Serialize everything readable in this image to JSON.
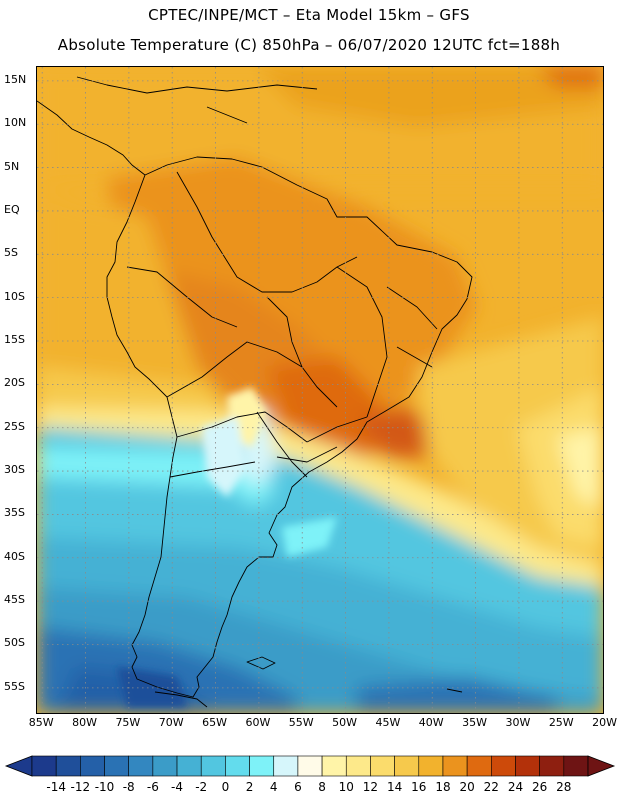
{
  "header": {
    "line1": "CPTEC/INPE/MCT –  Eta Model 15km – GFS",
    "line2": "Absolute Temperature (C) 850hPa – 06/07/2020 12UTC fct=188h"
  },
  "map": {
    "lat_labels": [
      "15N",
      "10N",
      "5N",
      "EQ",
      "5S",
      "10S",
      "15S",
      "20S",
      "25S",
      "30S",
      "35S",
      "40S",
      "45S",
      "50S",
      "55S"
    ],
    "lon_labels": [
      "85W",
      "80W",
      "75W",
      "70W",
      "65W",
      "60W",
      "55W",
      "50W",
      "45W",
      "40W",
      "35W",
      "30W",
      "25W",
      "20W"
    ],
    "lat_values": [
      15,
      10,
      5,
      0,
      -5,
      -10,
      -15,
      -20,
      -25,
      -30,
      -35,
      -40,
      -45,
      -50,
      -55
    ],
    "lon_values": [
      -85,
      -80,
      -75,
      -70,
      -65,
      -60,
      -55,
      -50,
      -45,
      -40,
      -35,
      -30,
      -25,
      -20
    ],
    "lon_range": [
      -85.6,
      -20.3
    ],
    "lat_range": [
      -57.9,
      16.6
    ],
    "gridlines": "dotted",
    "region": "South America"
  },
  "colorbar": {
    "labels": [
      "-14",
      "-12",
      "-10",
      "-8",
      "-6",
      "-4",
      "-2",
      "0",
      "2",
      "4",
      "6",
      "8",
      "10",
      "12",
      "14",
      "16",
      "18",
      "20",
      "22",
      "24",
      "26",
      "28"
    ],
    "colors": [
      "#1c3a8c",
      "#1f4f9a",
      "#2460a8",
      "#2a72b4",
      "#3387c0",
      "#3b9cc8",
      "#45b1d4",
      "#52c6e0",
      "#63dced",
      "#7ef2f8",
      "#d6f6fb",
      "#fffbe8",
      "#fff4a8",
      "#fde98a",
      "#fbdc6c",
      "#f6c94c",
      "#f2b22d",
      "#eb931e",
      "#df6a10",
      "#cd4a0a",
      "#b3310a",
      "#8e1f10",
      "#6e1414"
    ],
    "arrows": "both"
  }
}
